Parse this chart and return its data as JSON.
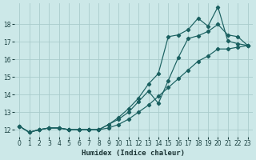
{
  "xlabel": "Humidex (Indice chaleur)",
  "bg_color": "#cce8e8",
  "grid_color": "#aacccc",
  "line_color": "#1a6060",
  "x_ticks": [
    0,
    1,
    2,
    3,
    4,
    5,
    6,
    7,
    8,
    9,
    10,
    11,
    12,
    13,
    14,
    15,
    16,
    17,
    18,
    19,
    20,
    21,
    22,
    23
  ],
  "y_ticks": [
    12,
    13,
    14,
    15,
    16,
    17,
    18
  ],
  "xlim": [
    -0.5,
    23.5
  ],
  "ylim": [
    11.6,
    19.2
  ],
  "line1_x": [
    0,
    1,
    2,
    3,
    4,
    5,
    6,
    7,
    8,
    9,
    10,
    11,
    12,
    13,
    14,
    15,
    16,
    17,
    18,
    19,
    20,
    21,
    22,
    23
  ],
  "line1_y": [
    12.2,
    11.85,
    12.0,
    12.1,
    12.1,
    12.0,
    12.0,
    12.0,
    12.0,
    12.1,
    12.3,
    12.6,
    13.0,
    13.4,
    13.9,
    14.4,
    14.9,
    15.4,
    15.9,
    16.2,
    16.6,
    16.6,
    16.7,
    16.8
  ],
  "line2_x": [
    0,
    1,
    2,
    3,
    4,
    5,
    6,
    7,
    8,
    9,
    10,
    11,
    12,
    13,
    14,
    15,
    16,
    17,
    18,
    19,
    20,
    21,
    22,
    23
  ],
  "line2_y": [
    12.2,
    11.85,
    12.0,
    12.1,
    12.1,
    12.0,
    12.0,
    12.0,
    12.0,
    12.3,
    12.6,
    13.0,
    13.6,
    14.2,
    13.5,
    14.8,
    16.1,
    17.2,
    17.35,
    17.6,
    18.0,
    17.4,
    17.3,
    16.8
  ],
  "line3_x": [
    0,
    1,
    2,
    3,
    4,
    5,
    6,
    7,
    8,
    9,
    10,
    11,
    12,
    13,
    14,
    15,
    16,
    17,
    18,
    19,
    20,
    21,
    22,
    23
  ],
  "line3_y": [
    12.2,
    11.85,
    12.0,
    12.1,
    12.1,
    12.0,
    12.0,
    12.0,
    12.0,
    12.3,
    12.7,
    13.2,
    13.8,
    14.6,
    15.2,
    17.3,
    17.4,
    17.7,
    18.35,
    17.9,
    19.0,
    17.05,
    16.9,
    16.8
  ]
}
